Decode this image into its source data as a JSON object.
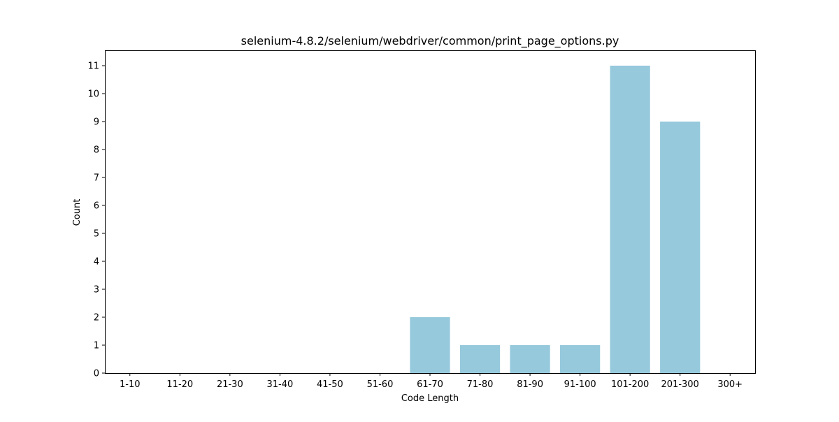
{
  "chart_data": {
    "type": "bar",
    "title": "selenium-4.8.2/selenium/webdriver/common/print_page_options.py",
    "xlabel": "Code Length",
    "ylabel": "Count",
    "categories": [
      "1-10",
      "11-20",
      "21-30",
      "31-40",
      "41-50",
      "51-60",
      "61-70",
      "71-80",
      "81-90",
      "91-100",
      "101-200",
      "201-300",
      "300+"
    ],
    "values": [
      0,
      0,
      0,
      0,
      0,
      0,
      2,
      1,
      1,
      1,
      11,
      9,
      0
    ],
    "ylim": [
      0,
      11.55
    ],
    "yticks": [
      0,
      1,
      2,
      3,
      4,
      5,
      6,
      7,
      8,
      9,
      10,
      11
    ],
    "grid": false,
    "legend": "none",
    "bar_color": "#96c9dc"
  }
}
